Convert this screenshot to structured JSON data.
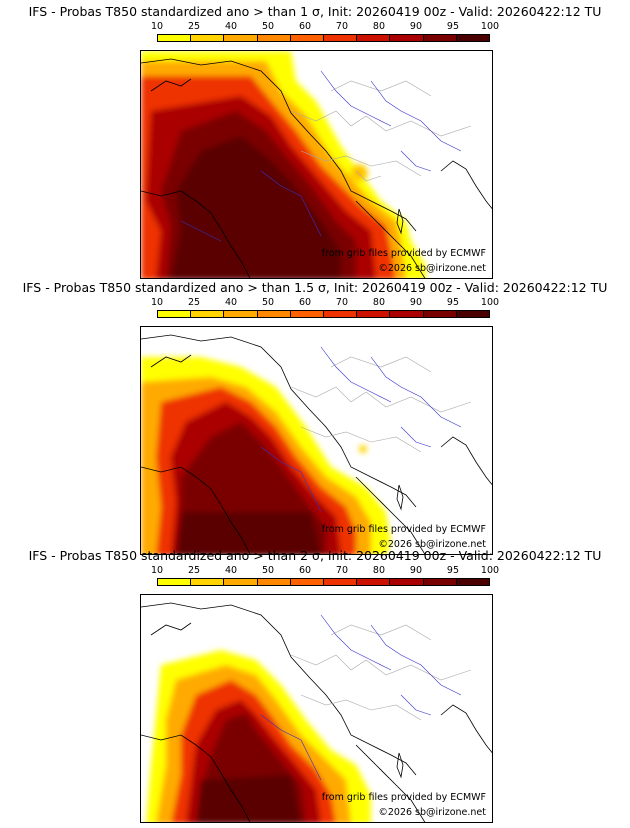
{
  "colorbar": {
    "labels": [
      "10",
      "25",
      "40",
      "50",
      "60",
      "70",
      "80",
      "90",
      "95",
      "100"
    ],
    "colors": [
      "#ffff00",
      "#ffd400",
      "#ffaa00",
      "#ff8800",
      "#ff6000",
      "#ee3300",
      "#cc1100",
      "#aa0000",
      "#7a0000",
      "#4a0000"
    ]
  },
  "panels": [
    {
      "title": "IFS - Probas T850  standardized ano > than 1 σ, Init: 20260419 00z - Valid: 20260422:12 TU",
      "credit_source": "from grib files provided by ECMWF",
      "credit_copyright": "©2026 sb@irizone.net",
      "threshold": "1 σ"
    },
    {
      "title": "IFS - Probas T850  standardized ano > than 1.5 σ, Init: 20260419 00z - Valid: 20260422:12 TU",
      "credit_source": "from grib files provided by ECMWF",
      "credit_copyright": "©2026 sb@irizone.net",
      "threshold": "1.5 σ"
    },
    {
      "title": "IFS - Probas T850  standardized ano > than 2 σ, Init: 20260419 00z - Valid: 20260422:12 TU",
      "credit_source": "from grib files provided by ECMWF",
      "credit_copyright": "©2026 sb@irizone.net",
      "threshold": "2 σ"
    }
  ]
}
